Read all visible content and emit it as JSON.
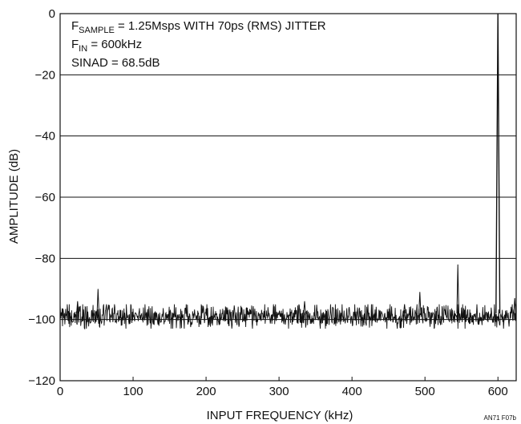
{
  "chart_data": {
    "type": "line",
    "title": "",
    "xlabel": "INPUT FREQUENCY (kHz)",
    "ylabel": "AMPLITUDE (dB)",
    "xlim": [
      0,
      625
    ],
    "ylim": [
      -120,
      0
    ],
    "x_ticks": [
      0,
      100,
      200,
      300,
      400,
      500,
      600
    ],
    "y_ticks": [
      0,
      -20,
      -40,
      -60,
      -80,
      -100,
      -120
    ],
    "y_tick_labels": [
      "0",
      "−20",
      "−40",
      "−60",
      "−80",
      "−100",
      "−120"
    ],
    "grid": "horizontal",
    "annotations": {
      "line1_prefix": "F",
      "line1_sub": "SAMPLE",
      "line1_rest": " = 1.25Msps WITH 70ps (RMS) JITTER",
      "line2_prefix": "F",
      "line2_sub": "IN",
      "line2_rest": " = 600kHz",
      "line3": "SINAD = 68.5dB"
    },
    "figure_id": "AN71 F07b",
    "series": [
      {
        "noise_floor_db": -99,
        "noise_range_db": [
          -103,
          -95
        ],
        "peaks": [
          {
            "x": 600,
            "y": 0
          },
          {
            "x": 545,
            "y": -82
          },
          {
            "x": 52,
            "y": -90
          },
          {
            "x": 493,
            "y": -91
          },
          {
            "x": 24,
            "y": -94
          },
          {
            "x": 335,
            "y": -94
          },
          {
            "x": 472,
            "y": -95
          },
          {
            "x": 623,
            "y": -93
          }
        ]
      }
    ]
  }
}
